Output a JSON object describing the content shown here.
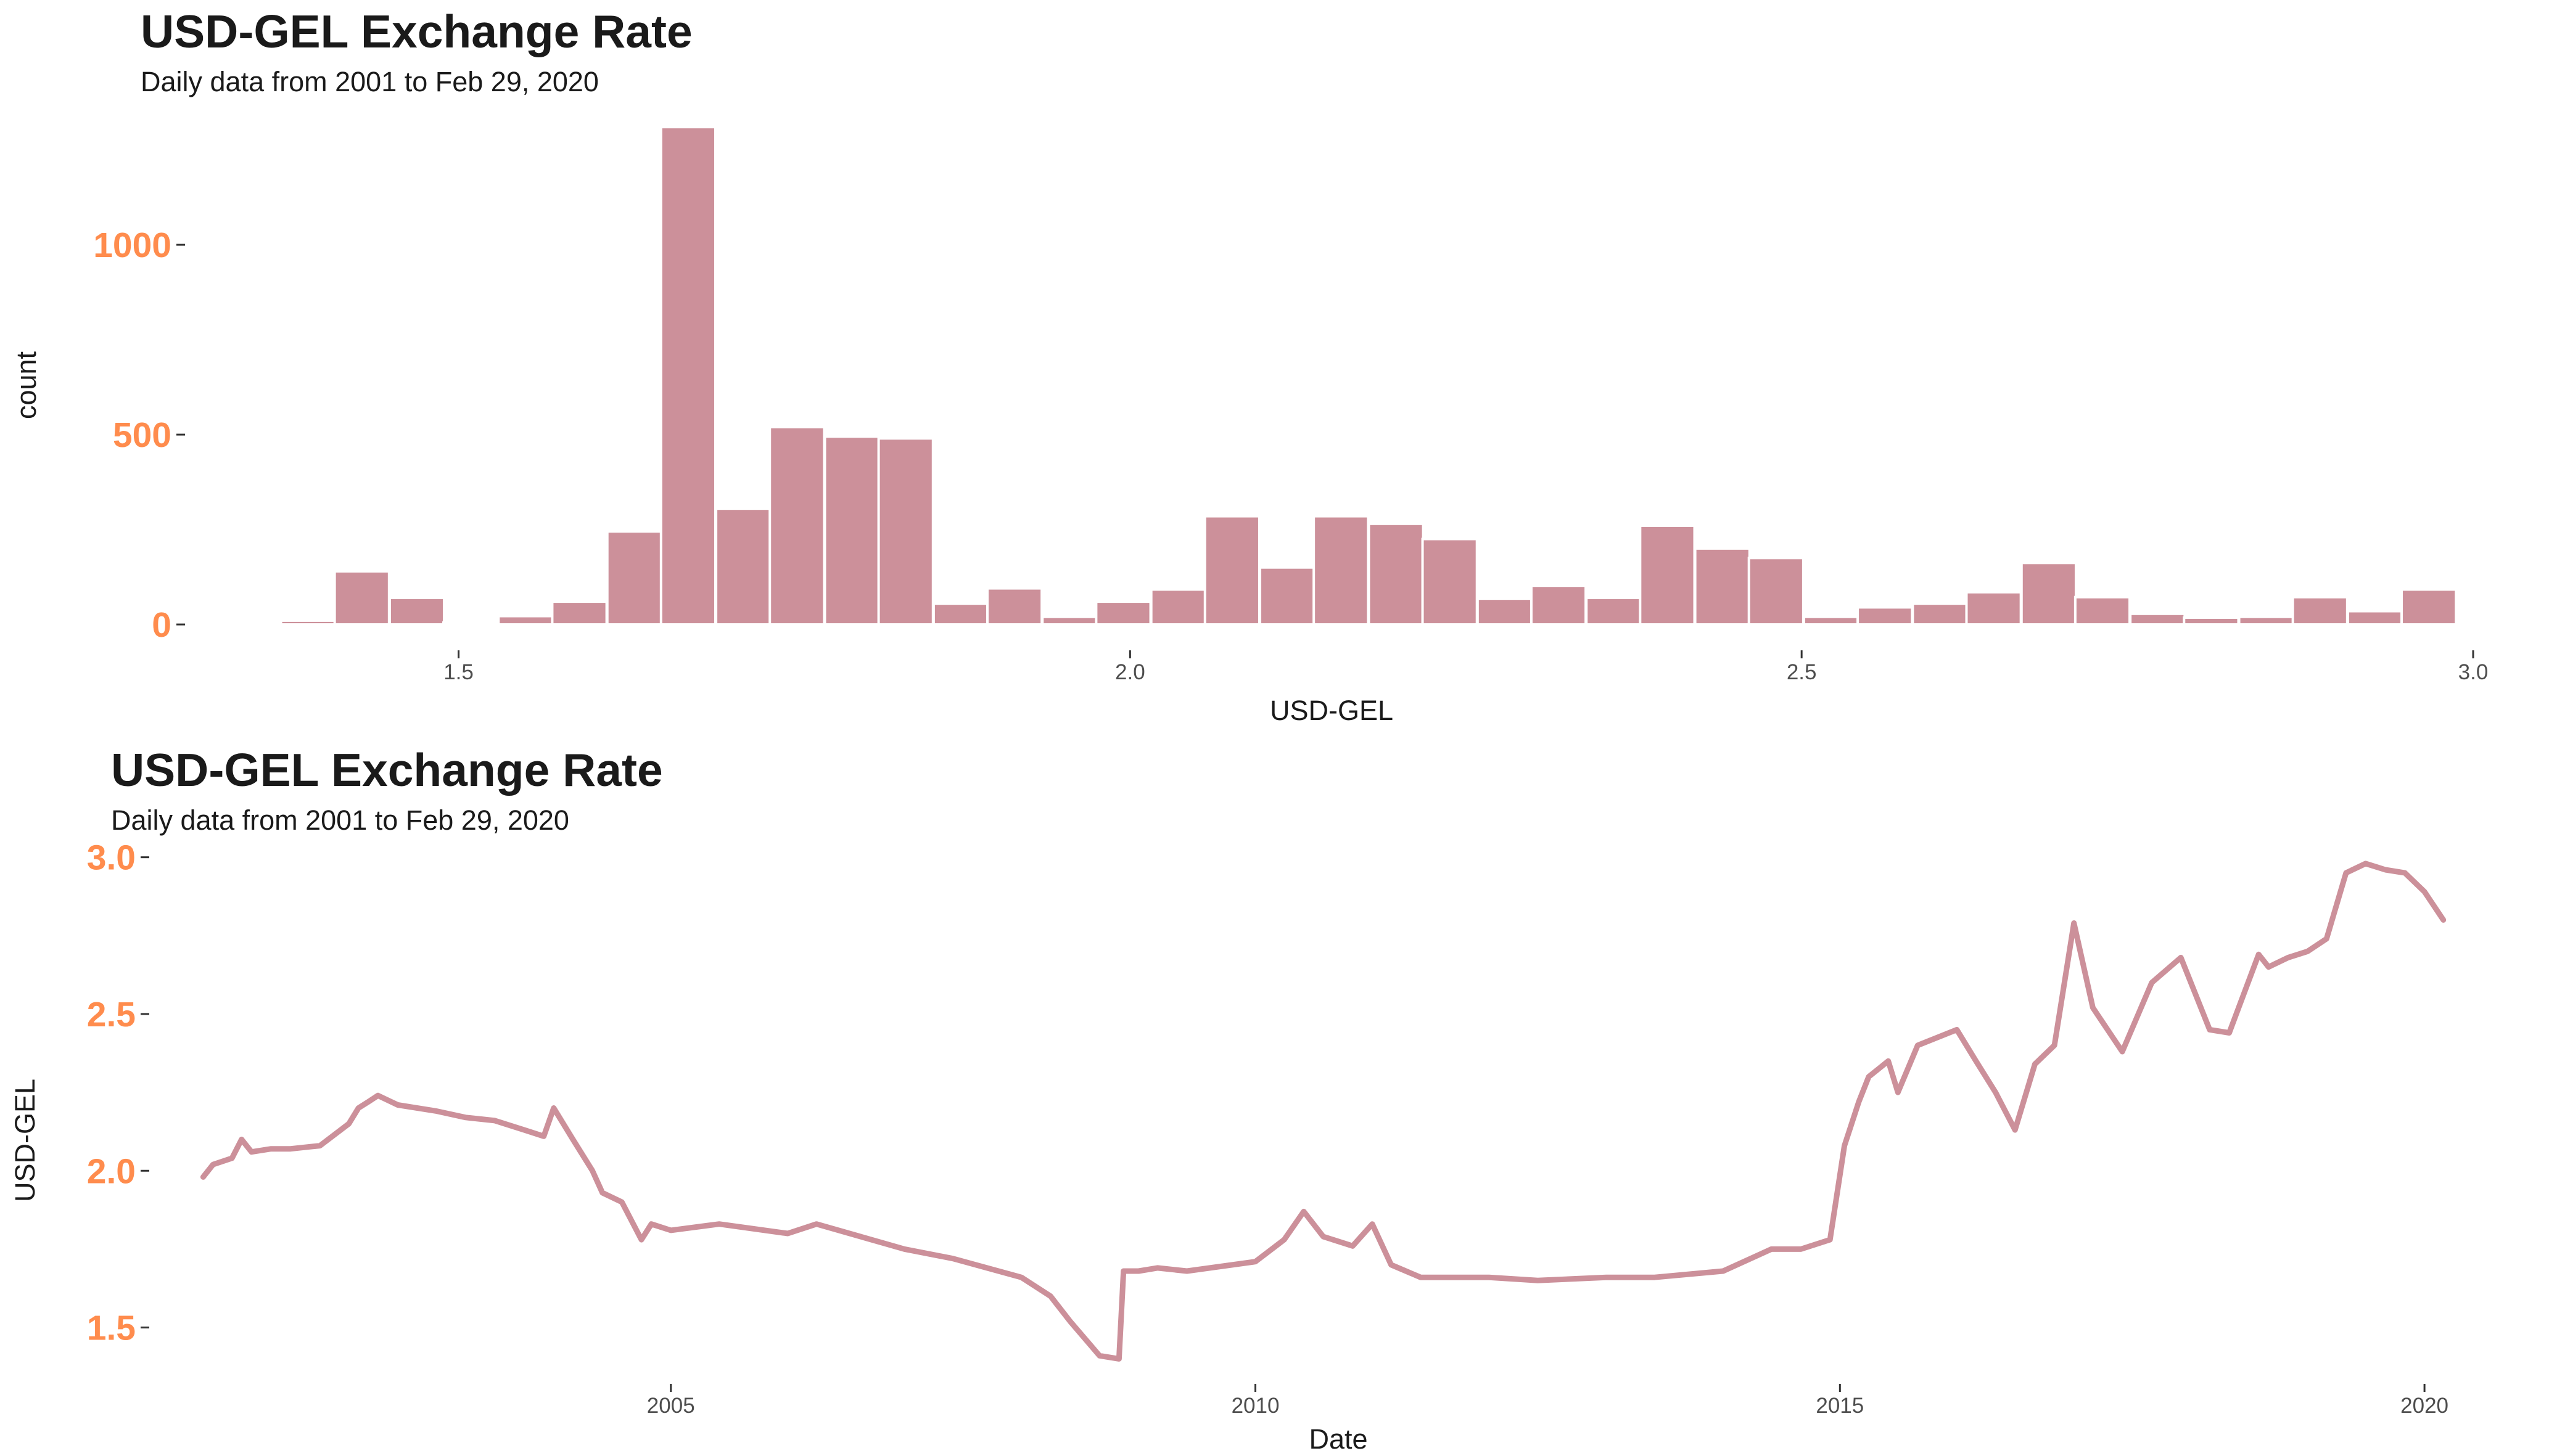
{
  "chart_data": [
    {
      "type": "bar",
      "title": "USD-GEL Exchange Rate",
      "subtitle": "Daily data from 2001 to Feb 29, 2020",
      "xlabel": "USD-GEL",
      "ylabel": "count",
      "xlim": [
        1.3,
        3.0
      ],
      "ylim": [
        -60,
        1320
      ],
      "x_ticks": [
        1.5,
        2.0,
        2.5,
        3.0
      ],
      "x_tick_labels": [
        "1.5",
        "2.0",
        "2.5",
        "3.0"
      ],
      "y_ticks": [
        0,
        500,
        1000
      ],
      "y_tick_labels": [
        "0",
        "500",
        "1000"
      ],
      "grid": false,
      "colors": {
        "bar_fill": "#cc909a",
        "bar_border": "#ffffff",
        "tick_label": "#ff8c4d"
      },
      "bin_width": 0.0405,
      "bins": [
        {
          "x": 1.388,
          "count": 10
        },
        {
          "x": 1.428,
          "count": 140
        },
        {
          "x": 1.469,
          "count": 70
        },
        {
          "x": 1.509,
          "count": 5
        },
        {
          "x": 1.55,
          "count": 22
        },
        {
          "x": 1.59,
          "count": 60
        },
        {
          "x": 1.631,
          "count": 245
        },
        {
          "x": 1.671,
          "count": 1310
        },
        {
          "x": 1.712,
          "count": 305
        },
        {
          "x": 1.752,
          "count": 520
        },
        {
          "x": 1.793,
          "count": 495
        },
        {
          "x": 1.833,
          "count": 490
        },
        {
          "x": 1.874,
          "count": 55
        },
        {
          "x": 1.914,
          "count": 95
        },
        {
          "x": 1.955,
          "count": 20
        },
        {
          "x": 1.995,
          "count": 60
        },
        {
          "x": 2.036,
          "count": 92
        },
        {
          "x": 2.076,
          "count": 285
        },
        {
          "x": 2.117,
          "count": 150
        },
        {
          "x": 2.157,
          "count": 285
        },
        {
          "x": 2.198,
          "count": 265
        },
        {
          "x": 2.238,
          "count": 225
        },
        {
          "x": 2.279,
          "count": 68
        },
        {
          "x": 2.319,
          "count": 102
        },
        {
          "x": 2.36,
          "count": 70
        },
        {
          "x": 2.4,
          "count": 260
        },
        {
          "x": 2.441,
          "count": 200
        },
        {
          "x": 2.481,
          "count": 175
        },
        {
          "x": 2.522,
          "count": 20
        },
        {
          "x": 2.562,
          "count": 45
        },
        {
          "x": 2.603,
          "count": 55
        },
        {
          "x": 2.643,
          "count": 85
        },
        {
          "x": 2.684,
          "count": 162
        },
        {
          "x": 2.724,
          "count": 72
        },
        {
          "x": 2.765,
          "count": 28
        },
        {
          "x": 2.805,
          "count": 18
        },
        {
          "x": 2.846,
          "count": 20
        },
        {
          "x": 2.886,
          "count": 72
        },
        {
          "x": 2.927,
          "count": 35
        },
        {
          "x": 2.967,
          "count": 92
        }
      ]
    },
    {
      "type": "line",
      "title": "USD-GEL Exchange Rate",
      "subtitle": "Daily data from 2001 to Feb 29, 2020",
      "xlabel": "Date",
      "ylabel": "USD-GEL",
      "xlim": [
        "2000-08-01",
        "2020-06-01"
      ],
      "ylim": [
        1.33,
        3.08
      ],
      "x_ticks": [
        "2005-01-01",
        "2010-01-01",
        "2015-01-01",
        "2020-01-01"
      ],
      "x_tick_labels": [
        "2005",
        "2010",
        "2015",
        "2020"
      ],
      "y_ticks": [
        1.5,
        2.0,
        2.5,
        3.0
      ],
      "y_tick_labels": [
        "1.5",
        "2.0",
        "2.5",
        "3.0"
      ],
      "grid": false,
      "colors": {
        "line": "#cc909a",
        "tick_label": "#ff8c4d"
      },
      "series": [
        {
          "x": [
            "2001-01-01",
            "2001-02-01",
            "2001-04-01",
            "2001-05-01",
            "2001-06-01",
            "2001-08-01",
            "2001-10-01",
            "2002-01-01",
            "2002-04-01",
            "2002-05-01",
            "2002-06-01",
            "2002-07-01",
            "2002-09-01",
            "2003-01-01",
            "2003-04-01",
            "2003-07-01",
            "2003-10-01",
            "2003-12-01",
            "2004-01-01",
            "2004-03-01",
            "2004-05-01",
            "2004-06-01",
            "2004-08-01",
            "2004-10-01",
            "2004-11-01",
            "2005-01-01",
            "2005-06-01",
            "2006-01-01",
            "2006-04-01",
            "2007-01-01",
            "2007-06-01",
            "2008-01-01",
            "2008-04-01",
            "2008-06-01",
            "2008-09-01",
            "2008-11-01",
            "2008-11-15",
            "2009-01-01",
            "2009-03-01",
            "2009-06-01",
            "2010-01-01",
            "2010-04-01",
            "2010-06-01",
            "2010-08-01",
            "2010-11-01",
            "2011-01-01",
            "2011-03-01",
            "2011-06-01",
            "2012-01-01",
            "2012-06-01",
            "2013-01-01",
            "2013-06-01",
            "2014-01-01",
            "2014-06-01",
            "2014-09-01",
            "2014-12-01",
            "2015-01-15",
            "2015-03-01",
            "2015-04-01",
            "2015-06-01",
            "2015-07-01",
            "2015-09-01",
            "2016-01-01",
            "2016-03-01",
            "2016-05-01",
            "2016-07-01",
            "2016-09-01",
            "2016-11-01",
            "2017-01-01",
            "2017-03-01",
            "2017-06-01",
            "2017-09-01",
            "2017-12-01",
            "2018-03-01",
            "2018-05-01",
            "2018-08-01",
            "2018-09-01",
            "2018-11-01",
            "2019-01-01",
            "2019-03-01",
            "2019-05-01",
            "2019-07-01",
            "2019-08-01",
            "2019-09-01",
            "2019-11-01",
            "2020-01-01",
            "2020-02-29"
          ],
          "y": [
            1.98,
            2.02,
            2.04,
            2.1,
            2.06,
            2.07,
            2.07,
            2.08,
            2.15,
            2.2,
            2.22,
            2.24,
            2.21,
            2.19,
            2.17,
            2.16,
            2.13,
            2.11,
            2.2,
            2.1,
            2.0,
            1.93,
            1.9,
            1.78,
            1.83,
            1.81,
            1.83,
            1.8,
            1.83,
            1.75,
            1.72,
            1.66,
            1.6,
            1.52,
            1.41,
            1.4,
            1.68,
            1.68,
            1.69,
            1.68,
            1.71,
            1.78,
            1.87,
            1.79,
            1.76,
            1.83,
            1.7,
            1.66,
            1.66,
            1.65,
            1.66,
            1.66,
            1.68,
            1.75,
            1.75,
            1.78,
            2.08,
            2.22,
            2.3,
            2.35,
            2.25,
            2.4,
            2.45,
            2.35,
            2.25,
            2.13,
            2.34,
            2.4,
            2.79,
            2.52,
            2.38,
            2.6,
            2.68,
            2.45,
            2.44,
            2.69,
            2.65,
            2.68,
            2.7,
            2.74,
            2.95,
            2.98,
            2.97,
            2.96,
            2.95,
            2.89,
            2.8
          ]
        }
      ]
    }
  ]
}
